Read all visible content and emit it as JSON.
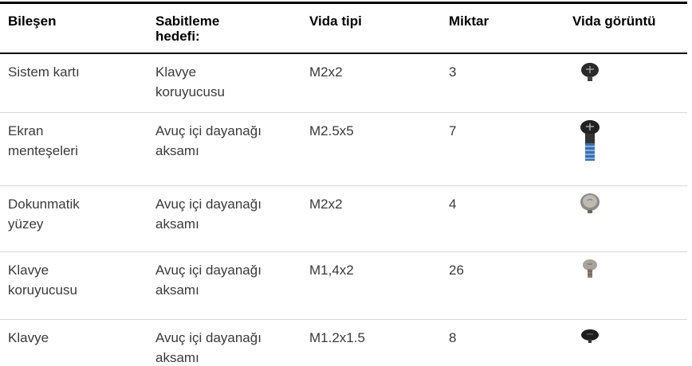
{
  "table": {
    "headers": [
      [
        "Bileşen"
      ],
      [
        "Sabitleme",
        "hedefi:"
      ],
      [
        "Vida tipi"
      ],
      [
        "Miktar"
      ],
      [
        "Vida görüntü"
      ]
    ],
    "rows": [
      [
        [
          "Sistem kartı"
        ],
        [
          "Klavye",
          "koruyucusu"
        ],
        [
          "M2x2"
        ],
        [
          "3"
        ]
      ],
      [
        [
          "Ekran",
          "menteşeleri"
        ],
        [
          "Avuç içi dayanağı",
          "aksamı"
        ],
        [
          "M2.5x5"
        ],
        [
          "7"
        ]
      ],
      [
        [
          "Dokunmatik",
          "yüzey"
        ],
        [
          "Avuç içi dayanağı",
          "aksamı"
        ],
        [
          "M2x2"
        ],
        [
          "4"
        ]
      ],
      [
        [
          "Klavye",
          "koruyucusu"
        ],
        [
          "Avuç içi dayanağı",
          "aksamı"
        ],
        [
          "M1,4x2"
        ],
        [
          "26"
        ]
      ],
      [
        [
          "Klavye"
        ],
        [
          "Avuç içi dayanağı",
          "aksamı"
        ],
        [
          "M1.2x1.5"
        ],
        [
          "8"
        ]
      ]
    ]
  }
}
